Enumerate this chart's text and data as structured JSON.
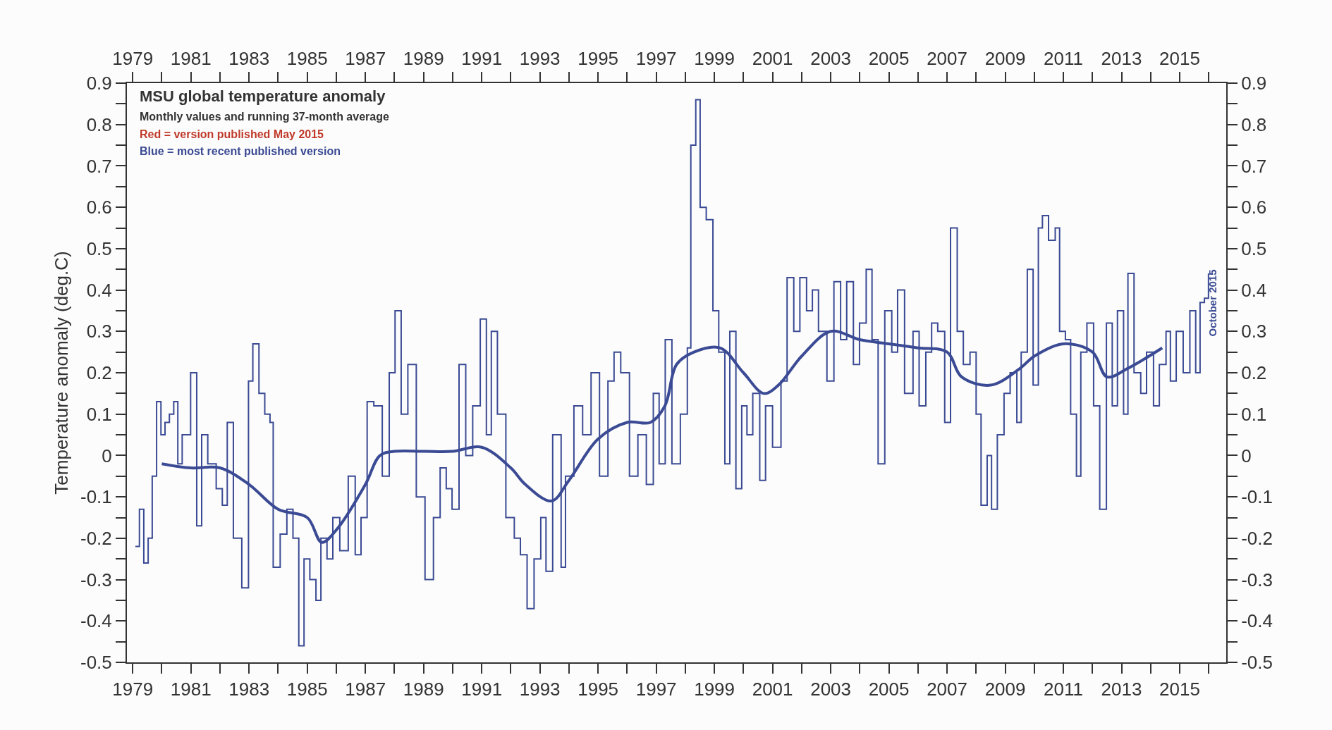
{
  "chart_data": {
    "type": "step",
    "title": "MSU global temperature anomaly",
    "ylabel": "Temperature anomaly (deg.C)",
    "annotations": [
      "Monthly values and running 37-month average",
      "Red = version published May 2015",
      "Blue = most recent published version",
      "October 2015"
    ],
    "xlim": [
      1978.8,
      2016.6
    ],
    "xticks": [
      1979,
      {
        "value": 1980,
        "label": null
      },
      1981,
      {
        "value": 1982,
        "label": null
      },
      1983,
      {
        "value": 1984,
        "label": null
      },
      1985,
      {
        "value": 1986,
        "label": null
      },
      1987,
      {
        "value": 1988,
        "label": null
      },
      1989,
      {
        "value": 1990,
        "label": null
      },
      1991,
      {
        "value": 1992,
        "label": null
      },
      1993,
      {
        "value": 1994,
        "label": null
      },
      1995,
      {
        "value": 1996,
        "label": null
      },
      1997,
      {
        "value": 1998,
        "label": null
      },
      1999,
      {
        "value": 2000,
        "label": null
      },
      2001,
      {
        "value": 2002,
        "label": null
      },
      2003,
      {
        "value": 2004,
        "label": null
      },
      2005,
      {
        "value": 2006,
        "label": null
      },
      2007,
      {
        "value": 2008,
        "label": null
      },
      2009,
      {
        "value": 2010,
        "label": null
      },
      2011,
      {
        "value": 2012,
        "label": null
      },
      2013,
      {
        "value": 2014,
        "label": null
      },
      2015,
      {
        "value": 2016,
        "label": null
      }
    ],
    "x2lim": [
      1978.8,
      2016.6
    ],
    "x2ticks": [
      1979,
      {
        "value": 1980,
        "label": null
      },
      1981,
      {
        "value": 1982,
        "label": null
      },
      1983,
      {
        "value": 1984,
        "label": null
      },
      1985,
      {
        "value": 1986,
        "label": null
      },
      1987,
      {
        "value": 1988,
        "label": null
      },
      1989,
      {
        "value": 1990,
        "label": null
      },
      1991,
      {
        "value": 1992,
        "label": null
      },
      1993,
      {
        "value": 1994,
        "label": null
      },
      1995,
      {
        "value": 1996,
        "label": null
      },
      1997,
      {
        "value": 1998,
        "label": null
      },
      1999,
      {
        "value": 2000,
        "label": null
      },
      2001,
      {
        "value": 2002,
        "label": null
      },
      2003,
      {
        "value": 2004,
        "label": null
      },
      2005,
      {
        "value": 2006,
        "label": null
      },
      2007,
      {
        "value": 2008,
        "label": null
      },
      2009,
      {
        "value": 2010,
        "label": null
      },
      2011,
      {
        "value": 2012,
        "label": null
      },
      2013,
      {
        "value": 2014,
        "label": null
      },
      2015,
      {
        "value": 2016,
        "label": null
      }
    ],
    "ylim": [
      -0.5,
      0.9
    ],
    "yticks": [
      -0.5,
      {
        "value": -0.45,
        "label": null
      },
      -0.4,
      {
        "value": -0.35,
        "label": null
      },
      -0.3,
      {
        "value": -0.25,
        "label": null
      },
      -0.2,
      {
        "value": -0.15,
        "label": null
      },
      -0.1,
      {
        "value": -0.05,
        "label": null
      },
      0,
      {
        "value": 0.05,
        "label": null
      },
      0.1,
      {
        "value": 0.15,
        "label": null
      },
      0.2,
      {
        "value": 0.25,
        "label": null
      },
      0.3,
      {
        "value": 0.35,
        "label": null
      },
      0.4,
      {
        "value": 0.45,
        "label": null
      },
      0.5,
      {
        "value": 0.55,
        "label": null
      },
      0.6,
      {
        "value": 0.65,
        "label": null
      },
      0.7,
      {
        "value": 0.75,
        "label": null
      },
      0.8,
      {
        "value": 0.85,
        "label": null
      },
      0.9
    ],
    "y2lim": [
      -0.5,
      0.9
    ],
    "y2ticks": [
      -0.5,
      {
        "value": -0.45,
        "label": null
      },
      -0.4,
      {
        "value": -0.35,
        "label": null
      },
      -0.3,
      {
        "value": -0.25,
        "label": null
      },
      -0.2,
      {
        "value": -0.15,
        "label": null
      },
      -0.1,
      {
        "value": -0.05,
        "label": null
      },
      0,
      {
        "value": 0.05,
        "label": null
      },
      0.1,
      {
        "value": 0.15,
        "label": null
      },
      0.2,
      {
        "value": 0.25,
        "label": null
      },
      0.3,
      {
        "value": 0.35,
        "label": null
      },
      0.4,
      {
        "value": 0.45,
        "label": null
      },
      0.5,
      {
        "value": 0.55,
        "label": null
      },
      0.6,
      {
        "value": 0.65,
        "label": null
      },
      0.7,
      {
        "value": 0.75,
        "label": null
      },
      0.8,
      {
        "value": 0.85,
        "label": null
      },
      0.9
    ],
    "series": [
      {
        "color": "#3b4a94",
        "x": [
          1979.09,
          1979.23,
          1979.38,
          1979.53,
          1979.67,
          1979.82,
          1979.97,
          1980.11,
          1980.26,
          1980.41,
          1980.55,
          1980.7,
          1980.99,
          1981.2,
          1981.37,
          1981.58,
          1981.87,
          1982.08,
          1982.25,
          1982.46,
          1982.75,
          1982.98,
          1983.13,
          1983.34,
          1983.54,
          1983.72,
          1983.83,
          1984.07,
          1984.3,
          1984.51,
          1984.71,
          1984.89,
          1985.09,
          1985.3,
          1985.47,
          1985.68,
          1985.88,
          1986.12,
          1986.41,
          1986.65,
          1986.85,
          1987.06,
          1987.29,
          1987.58,
          1987.82,
          1988.02,
          1988.23,
          1988.46,
          1988.75,
          1989.05,
          1989.34,
          1989.57,
          1989.78,
          1989.98,
          1990.22,
          1990.45,
          1990.69,
          1990.95,
          1991.16,
          1991.33,
          1991.54,
          1991.83,
          1992.12,
          1992.33,
          1992.56,
          1992.8,
          1993.03,
          1993.21,
          1993.44,
          1993.73,
          1993.88,
          1994.17,
          1994.47,
          1994.76,
          1995.05,
          1995.34,
          1995.55,
          1995.78,
          1996.08,
          1996.37,
          1996.66,
          1996.9,
          1997.1,
          1997.31,
          1997.54,
          1997.83,
          1998.07,
          1998.19,
          1998.36,
          1998.51,
          1998.72,
          1998.95,
          1999.15,
          1999.36,
          1999.53,
          1999.74,
          1999.94,
          2000.12,
          2000.32,
          2000.56,
          2000.76,
          2001.0,
          2001.29,
          2001.5,
          2001.73,
          2001.94,
          2002.17,
          2002.37,
          2002.58,
          2002.87,
          2003.11,
          2003.34,
          2003.55,
          2003.78,
          2003.99,
          2004.22,
          2004.42,
          2004.63,
          2004.86,
          2005.1,
          2005.3,
          2005.54,
          2005.83,
          2006.04,
          2006.27,
          2006.47,
          2006.68,
          2006.92,
          2007.12,
          2007.35,
          2007.56,
          2007.79,
          2008.0,
          2008.17,
          2008.38,
          2008.53,
          2008.73,
          2008.96,
          2009.17,
          2009.4,
          2009.55,
          2009.76,
          2009.96,
          2010.14,
          2010.28,
          2010.49,
          2010.72,
          2010.87,
          2011.07,
          2011.25,
          2011.45,
          2011.6,
          2011.81,
          2012.04,
          2012.25,
          2012.48,
          2012.68,
          2012.86,
          2013.07,
          2013.22,
          2013.43,
          2013.66,
          2013.86,
          2014.1,
          2014.3,
          2014.53,
          2014.68,
          2014.88,
          2015.12,
          2015.35,
          2015.55,
          2015.7,
          2015.85,
          2015.99
        ],
        "values": [
          -0.22,
          -0.13,
          -0.26,
          -0.2,
          -0.05,
          0.13,
          0.05,
          0.08,
          0.1,
          0.13,
          -0.02,
          0.05,
          0.2,
          -0.17,
          0.05,
          -0.02,
          -0.08,
          -0.12,
          0.08,
          -0.2,
          -0.32,
          0.18,
          0.27,
          0.15,
          0.1,
          0.08,
          -0.27,
          -0.19,
          -0.13,
          -0.2,
          -0.46,
          -0.25,
          -0.3,
          -0.35,
          -0.2,
          -0.25,
          -0.15,
          -0.23,
          -0.05,
          -0.24,
          -0.15,
          0.13,
          0.12,
          -0.05,
          0.2,
          0.35,
          0.1,
          0.22,
          -0.1,
          -0.3,
          -0.15,
          -0.03,
          -0.08,
          -0.13,
          0.22,
          0.0,
          0.12,
          0.33,
          0.05,
          0.3,
          0.1,
          -0.15,
          -0.2,
          -0.24,
          -0.37,
          -0.25,
          -0.15,
          -0.28,
          0.05,
          -0.27,
          -0.05,
          0.12,
          0.05,
          0.2,
          -0.05,
          0.18,
          0.25,
          0.2,
          -0.05,
          0.05,
          -0.07,
          0.15,
          -0.02,
          0.28,
          -0.02,
          0.1,
          0.26,
          0.75,
          0.86,
          0.6,
          0.57,
          0.35,
          0.25,
          -0.02,
          0.3,
          -0.08,
          0.12,
          0.05,
          0.15,
          -0.06,
          0.12,
          0.02,
          0.18,
          0.43,
          0.3,
          0.43,
          0.35,
          0.4,
          0.3,
          0.18,
          0.42,
          0.28,
          0.42,
          0.22,
          0.32,
          0.45,
          0.28,
          -0.02,
          0.35,
          0.25,
          0.4,
          0.15,
          0.3,
          0.12,
          0.25,
          0.32,
          0.3,
          0.08,
          0.55,
          0.3,
          0.22,
          0.25,
          0.1,
          -0.12,
          0.0,
          -0.13,
          0.05,
          0.15,
          0.2,
          0.08,
          0.25,
          0.45,
          0.17,
          0.55,
          0.58,
          0.52,
          0.55,
          0.3,
          0.28,
          0.1,
          -0.05,
          0.25,
          0.32,
          0.12,
          -0.13,
          0.32,
          0.12,
          0.35,
          0.1,
          0.44,
          0.2,
          0.15,
          0.25,
          0.12,
          0.22,
          0.3,
          0.18,
          0.3,
          0.2,
          0.35,
          0.2,
          0.37,
          0.38,
          0.44
        ]
      },
      {
        "type": "line",
        "color": "#3b4a94",
        "x": [
          1980.0,
          1981.0,
          1982.0,
          1983.0,
          1984.0,
          1985.0,
          1985.5,
          1986.0,
          1987.0,
          1987.5,
          1988.0,
          1989.0,
          1990.0,
          1991.0,
          1992.0,
          1992.5,
          1993.4,
          1994.0,
          1995.0,
          1996.0,
          1996.8,
          1997.3,
          1997.7,
          1998.3,
          1999.2,
          2000.0,
          2000.7,
          2001.2,
          2002.0,
          2003.0,
          2004.0,
          2005.0,
          2006.0,
          2007.0,
          2007.5,
          2008.5,
          2009.5,
          2010.0,
          2011.0,
          2012.0,
          2012.5,
          2013.2,
          2014.4
        ],
        "values": [
          -0.02,
          -0.03,
          -0.03,
          -0.07,
          -0.13,
          -0.15,
          -0.21,
          -0.18,
          -0.07,
          0.0,
          0.01,
          0.01,
          0.01,
          0.02,
          -0.03,
          -0.07,
          -0.11,
          -0.06,
          0.04,
          0.08,
          0.08,
          0.12,
          0.22,
          0.25,
          0.26,
          0.2,
          0.15,
          0.17,
          0.24,
          0.3,
          0.28,
          0.27,
          0.26,
          0.25,
          0.19,
          0.17,
          0.21,
          0.24,
          0.27,
          0.25,
          0.19,
          0.21,
          0.26
        ]
      }
    ]
  }
}
